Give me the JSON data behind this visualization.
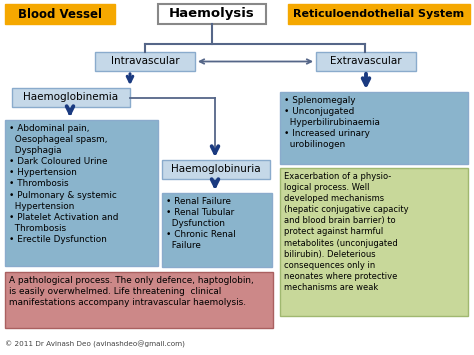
{
  "bg_color": "#ffffff",
  "title": "Haemolysis",
  "left_header": "Blood Vessel",
  "left_header_bg": "#f5a800",
  "right_header": "Reticuloendothelial System",
  "right_header_bg": "#f5a800",
  "intravascular_label": "Intravascular",
  "extravascular_label": "Extravascular",
  "box_light_color": "#c5d8e8",
  "box_light_edge": "#8aabcc",
  "haemoglobinemia_label": "Haemoglobinemia",
  "haemoglobinuria_label": "Haemoglobinuria",
  "left_bullets_text": "• Abdominal pain,\n  Oesophageal spasm,\n  Dysphagia\n• Dark Coloured Urine\n• Hypertension\n• Thrombosis\n• Pulmonary & systemic\n  Hypertension\n• Platelet Activation and\n  Thrombosis\n• Erectile Dysfunction",
  "left_bullets_bg": "#8ab4cc",
  "center_bullets_text": "• Renal Failure\n• Renal Tubular\n  Dysfunction\n• Chronic Renal\n  Failure",
  "center_bullets_bg": "#8ab4cc",
  "right_bullets_text": "• Splenomegaly\n• Unconjugated\n  Hyperbilirubinaemia\n• Increased urinary\n  urobilinogen",
  "right_bullets_bg": "#8ab4cc",
  "right_info_text": "Exacerbation of a physio-\nlogical process. Well\ndeveloped mechanisms\n(hepatic conjugative capacity\nand blood brain barrier) to\nprotect against harmful\nmetabolites (unconjugated\nbilirubin). Deleterious\nconsequences only in\nneonates where protective\nmechanisms are weak",
  "right_info_bg": "#c8d89a",
  "right_info_edge": "#a0b870",
  "bottom_text": "A pathological process. The only defence, haptoglobin,\nis easily overwhelmed. Life threatening  clinical\nmanifestations accompany intravascular haemolysis.",
  "bottom_bg": "#cc8888",
  "bottom_edge": "#aa6060",
  "copyright_text": "© 2011 Dr Avinash Deo (avinashdeo@gmail.com)",
  "arrow_color": "#1a3a80",
  "line_color": "#556688"
}
